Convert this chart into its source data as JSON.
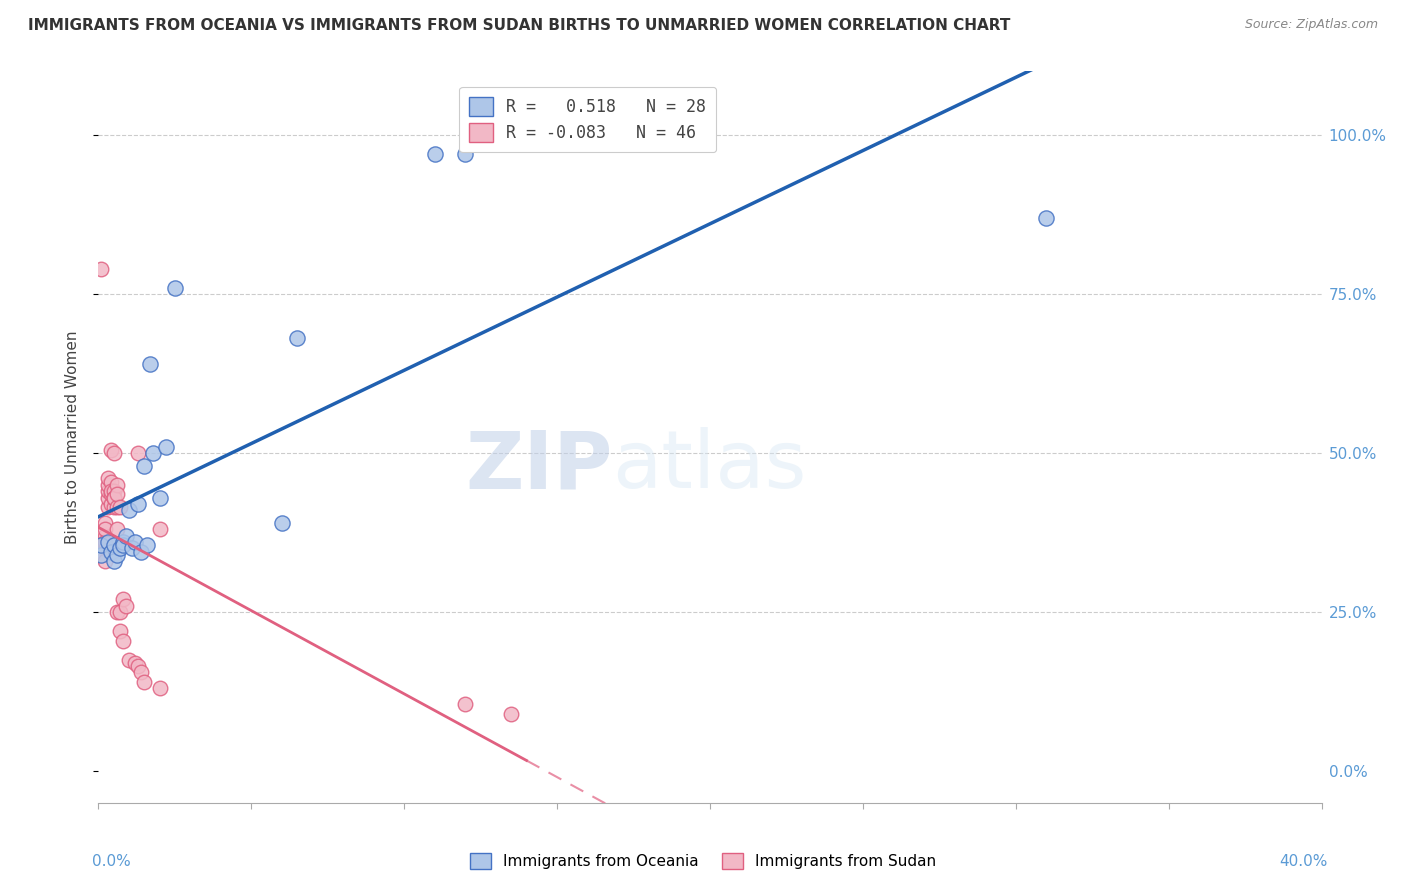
{
  "title": "IMMIGRANTS FROM OCEANIA VS IMMIGRANTS FROM SUDAN BIRTHS TO UNMARRIED WOMEN CORRELATION CHART",
  "source": "Source: ZipAtlas.com",
  "ylabel": "Births to Unmarried Women",
  "oceania_color": "#aec6e8",
  "sudan_color": "#f2b8c6",
  "oceania_edge": "#4472c4",
  "sudan_edge": "#e06080",
  "regression_oceania_color": "#2060b0",
  "regression_sudan_color": "#e06080",
  "watermark_zip": "ZIP",
  "watermark_atlas": "atlas",
  "oceania_x": [
    0.001,
    0.001,
    0.003,
    0.004,
    0.005,
    0.005,
    0.006,
    0.007,
    0.008,
    0.008,
    0.009,
    0.01,
    0.011,
    0.012,
    0.013,
    0.014,
    0.015,
    0.016,
    0.017,
    0.018,
    0.02,
    0.022,
    0.025,
    0.06,
    0.065,
    0.11,
    0.12,
    0.31
  ],
  "oceania_y": [
    0.34,
    0.355,
    0.36,
    0.345,
    0.33,
    0.355,
    0.34,
    0.35,
    0.36,
    0.355,
    0.37,
    0.41,
    0.35,
    0.36,
    0.42,
    0.345,
    0.48,
    0.355,
    0.64,
    0.5,
    0.43,
    0.51,
    0.76,
    0.39,
    0.68,
    0.97,
    0.97,
    0.87
  ],
  "sudan_x": [
    0.001,
    0.001,
    0.001,
    0.001,
    0.002,
    0.002,
    0.002,
    0.002,
    0.002,
    0.002,
    0.003,
    0.003,
    0.003,
    0.003,
    0.003,
    0.004,
    0.004,
    0.004,
    0.004,
    0.004,
    0.005,
    0.005,
    0.005,
    0.005,
    0.005,
    0.006,
    0.006,
    0.006,
    0.006,
    0.006,
    0.007,
    0.007,
    0.007,
    0.008,
    0.008,
    0.009,
    0.01,
    0.012,
    0.013,
    0.013,
    0.014,
    0.015,
    0.02,
    0.02,
    0.12,
    0.135
  ],
  "sudan_y": [
    0.79,
    0.36,
    0.35,
    0.34,
    0.33,
    0.355,
    0.37,
    0.39,
    0.36,
    0.38,
    0.415,
    0.43,
    0.44,
    0.45,
    0.46,
    0.42,
    0.435,
    0.455,
    0.44,
    0.505,
    0.415,
    0.5,
    0.44,
    0.43,
    0.43,
    0.45,
    0.415,
    0.435,
    0.38,
    0.25,
    0.415,
    0.25,
    0.22,
    0.205,
    0.27,
    0.26,
    0.175,
    0.17,
    0.165,
    0.5,
    0.155,
    0.14,
    0.13,
    0.38,
    0.105,
    0.09
  ],
  "xlim": [
    0.0,
    0.4
  ],
  "ylim": [
    -0.05,
    1.1
  ],
  "y_ticks": [
    0.0,
    0.25,
    0.5,
    0.75,
    1.0
  ],
  "y_tick_labels": [
    "0.0%",
    "25.0%",
    "50.0%",
    "75.0%",
    "100.0%"
  ],
  "figsize": [
    14.06,
    8.92
  ],
  "dpi": 100
}
